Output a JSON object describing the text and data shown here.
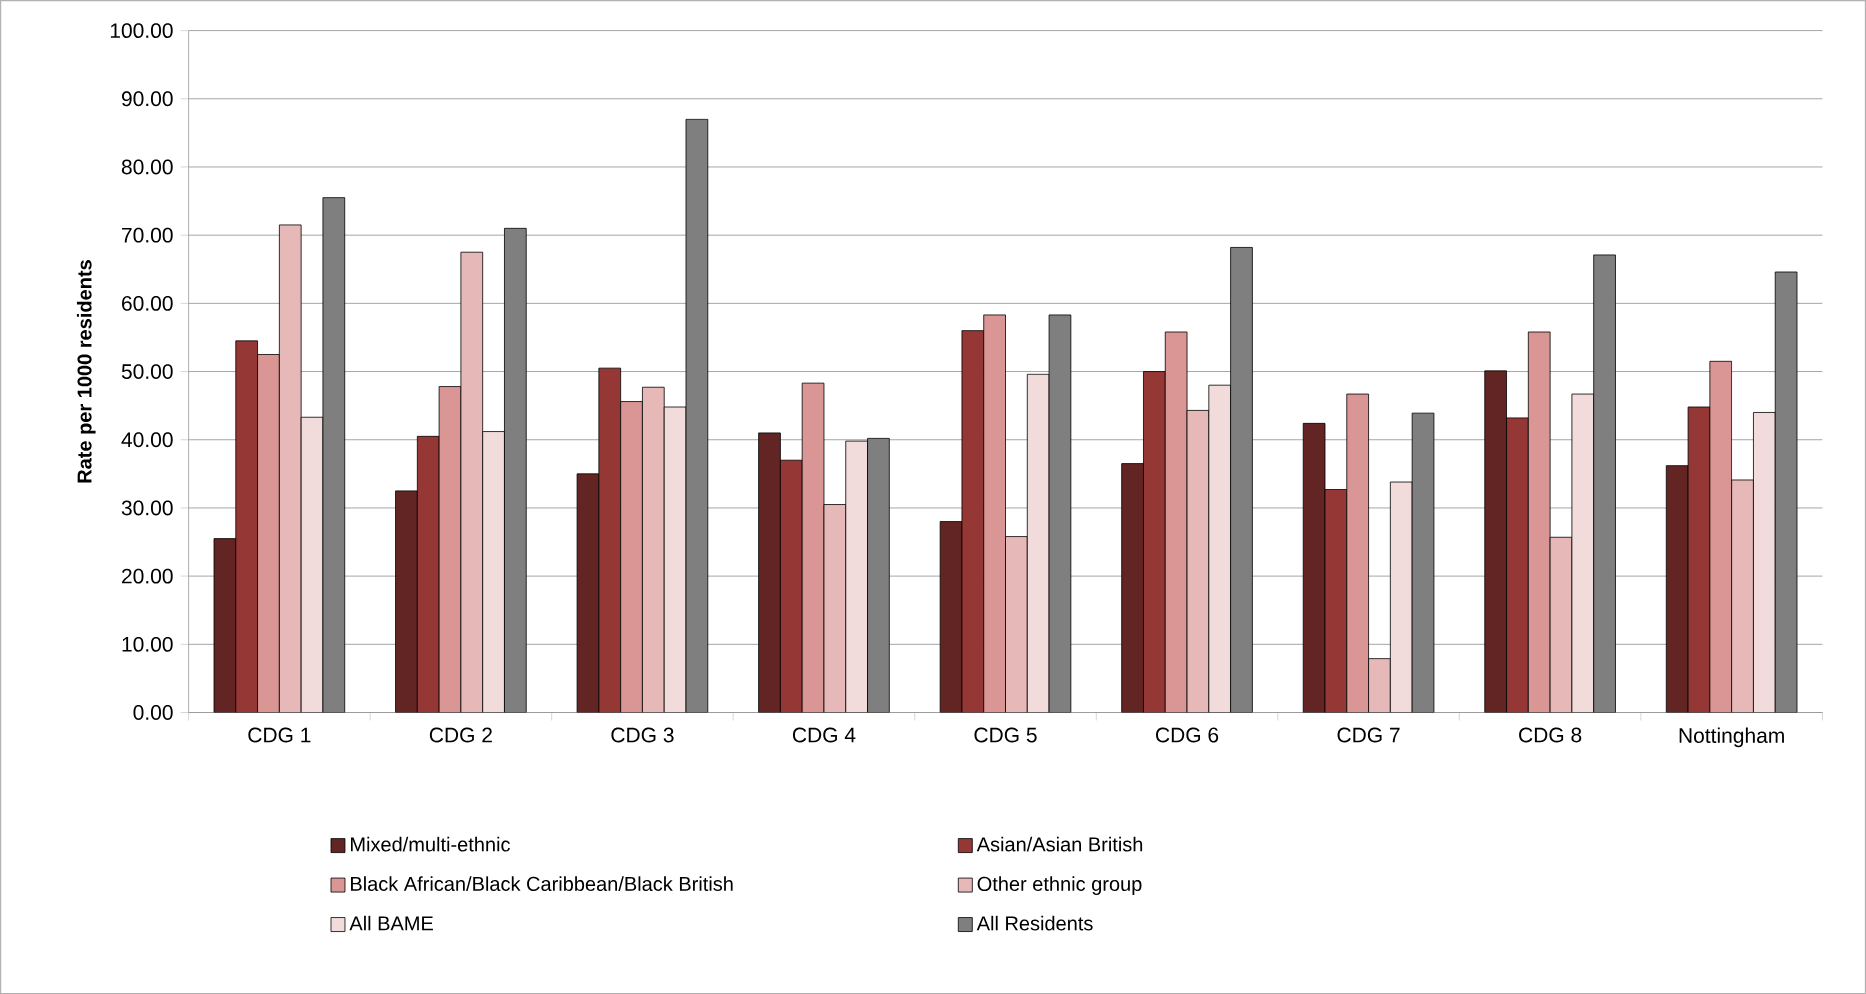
{
  "chart_data": {
    "type": "bar",
    "ylabel": "Rate per 1000 residents",
    "categories": [
      "CDG 1",
      "CDG 2",
      "CDG 3",
      "CDG 4",
      "CDG 5",
      "CDG 6",
      "CDG 7",
      "CDG 8",
      "Nottingham"
    ],
    "series": [
      {
        "name": "Mixed/multi-ethnic",
        "color": "#632523",
        "values": [
          25.5,
          32.5,
          35.0,
          41.0,
          28.0,
          36.5,
          42.4,
          50.1,
          36.2
        ]
      },
      {
        "name": "Asian/Asian British",
        "color": "#953735",
        "values": [
          54.5,
          40.5,
          50.5,
          37.0,
          56.0,
          50.0,
          32.7,
          43.2,
          44.8
        ]
      },
      {
        "name": "Black African/Black Caribbean/Black British",
        "color": "#d99694",
        "values": [
          52.5,
          47.8,
          45.6,
          48.3,
          58.3,
          55.8,
          46.7,
          55.8,
          51.5
        ]
      },
      {
        "name": "Other ethnic group",
        "color": "#e6b9b8",
        "values": [
          71.5,
          67.5,
          47.7,
          30.5,
          25.8,
          44.3,
          7.9,
          25.7,
          34.1
        ]
      },
      {
        "name": "All BAME",
        "color": "#f2dcdb",
        "values": [
          43.3,
          41.2,
          44.8,
          39.8,
          49.6,
          48.0,
          33.8,
          46.7,
          44.0
        ]
      },
      {
        "name": "All Residents",
        "color": "#7f7f7f",
        "values": [
          75.5,
          71.0,
          87.0,
          40.2,
          58.3,
          68.2,
          43.9,
          67.1,
          64.6
        ]
      }
    ],
    "ylim": [
      0,
      100
    ],
    "yticks": [
      {
        "value": 0,
        "label": "0.00"
      },
      {
        "value": 10,
        "label": "10.00"
      },
      {
        "value": 20,
        "label": "20.00"
      },
      {
        "value": 30,
        "label": "30.00"
      },
      {
        "value": 40,
        "label": "40.00"
      },
      {
        "value": 50,
        "label": "50.00"
      },
      {
        "value": 60,
        "label": "60.00"
      },
      {
        "value": 70,
        "label": "70.00"
      },
      {
        "value": 80,
        "label": "80.00"
      },
      {
        "value": 90,
        "label": "90.00"
      },
      {
        "value": 100,
        "label": "100.00"
      }
    ],
    "grid": "y",
    "legend": "bottom"
  }
}
